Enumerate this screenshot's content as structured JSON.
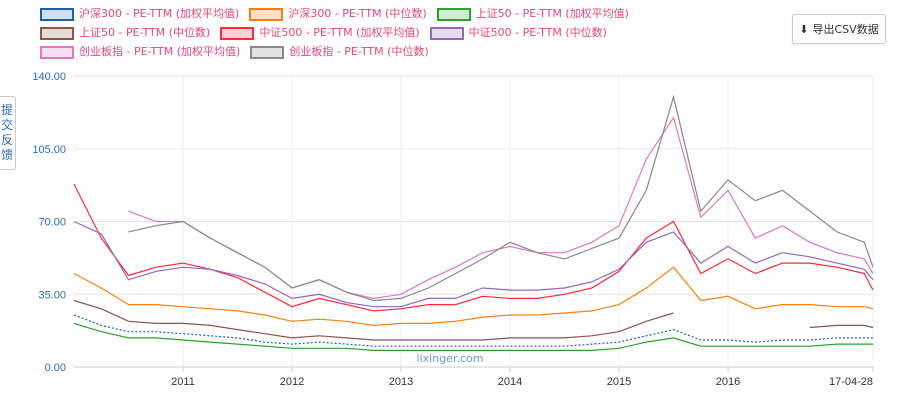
{
  "export_button": {
    "label": "导出CSV数据",
    "icon": "download-icon"
  },
  "feedback_tab": {
    "label": "提交反馈"
  },
  "watermark": "lixinger.com",
  "chart_data": {
    "type": "line",
    "title": "",
    "xlabel": "",
    "ylabel": "",
    "ylim": [
      0,
      140
    ],
    "yticks": [
      "0.00",
      "35.00",
      "70.00",
      "105.00",
      "140.00"
    ],
    "ytick_values": [
      0,
      35,
      70,
      105,
      140
    ],
    "xticks": [
      "2011",
      "2012",
      "2013",
      "2014",
      "2015",
      "2016",
      "17-04-28"
    ],
    "xtick_values": [
      2011,
      2012,
      2013,
      2014,
      2015,
      2016,
      2017.33
    ],
    "xlim": [
      2010.0,
      2017.33
    ],
    "grid": true,
    "legend_position": "top",
    "x": [
      2010,
      2010.25,
      2010.5,
      2010.75,
      2011,
      2011.25,
      2011.5,
      2011.75,
      2012,
      2012.25,
      2012.5,
      2012.75,
      2013,
      2013.25,
      2013.5,
      2013.75,
      2014,
      2014.25,
      2014.5,
      2014.75,
      2015,
      2015.25,
      2015.5,
      2015.75,
      2016,
      2016.25,
      2016.5,
      2016.75,
      2017,
      2017.25,
      2017.33
    ],
    "series": [
      {
        "name": "沪深300 - PE-TTM (加权平均值)",
        "color": "#1f5fa8",
        "fill": "#cfe0f0",
        "dash": true,
        "values": [
          25,
          20,
          17,
          17,
          16,
          15,
          14,
          12,
          11,
          12,
          11,
          10,
          10,
          10,
          10,
          10,
          10,
          10,
          10,
          11,
          12,
          15,
          18,
          13,
          13,
          12,
          13,
          13,
          14,
          14,
          14
        ]
      },
      {
        "name": "沪深300 - PE-TTM (中位数)",
        "color": "#ff7f0e",
        "fill": "#ffe0c8",
        "values": [
          45,
          38,
          30,
          30,
          29,
          28,
          27,
          25,
          22,
          23,
          22,
          20,
          21,
          21,
          22,
          24,
          25,
          25,
          26,
          27,
          30,
          38,
          48,
          32,
          34,
          28,
          30,
          30,
          29,
          29,
          28
        ]
      },
      {
        "name": "上证50 - PE-TTM (加权平均值)",
        "color": "#2ca02c",
        "fill": "#d2ecd2",
        "values": [
          21,
          17,
          14,
          14,
          13,
          12,
          11,
          10,
          9,
          9,
          9,
          8,
          8,
          8,
          8,
          8,
          8,
          8,
          8,
          8,
          9,
          12,
          14,
          10,
          10,
          10,
          10,
          10,
          11,
          11,
          11
        ]
      },
      {
        "name": "上证50 - PE-TTM (中位数)",
        "color": "#8c564b",
        "fill": "#e8dcd9",
        "values": [
          32,
          28,
          22,
          21,
          21,
          20,
          18,
          16,
          14,
          15,
          14,
          13,
          13,
          13,
          13,
          13,
          14,
          14,
          14,
          15,
          17,
          22,
          26,
          null,
          null,
          null,
          null,
          19,
          20,
          20,
          19
        ]
      },
      {
        "name": "中证500 - PE-TTM (加权平均值)",
        "color": "#ff2a3a",
        "fill": "#ffd0d4",
        "values": [
          88,
          62,
          44,
          48,
          50,
          47,
          43,
          36,
          29,
          33,
          30,
          27,
          28,
          30,
          30,
          34,
          33,
          33,
          35,
          38,
          46,
          62,
          70,
          45,
          52,
          45,
          50,
          50,
          48,
          45,
          37
        ]
      },
      {
        "name": "中证500 - PE-TTM (中位数)",
        "color": "#9467bd",
        "fill": "#e6dcf0",
        "values": [
          70,
          64,
          42,
          46,
          48,
          47,
          44,
          40,
          33,
          35,
          31,
          29,
          29,
          33,
          33,
          38,
          37,
          37,
          38,
          41,
          47,
          60,
          65,
          50,
          58,
          50,
          55,
          53,
          50,
          47,
          42
        ]
      },
      {
        "name": "创业板指 - PE-TTM (加权平均值)",
        "color": "#e377c2",
        "fill": "#f8dcf0",
        "values": [
          null,
          null,
          75,
          70,
          70,
          62,
          55,
          48,
          38,
          42,
          36,
          33,
          35,
          42,
          48,
          55,
          58,
          55,
          55,
          60,
          68,
          100,
          120,
          72,
          85,
          62,
          68,
          60,
          55,
          52,
          45
        ]
      },
      {
        "name": "创业板指 - PE-TTM (中位数)",
        "color": "#888888",
        "fill": "#e2e2e2",
        "values": [
          null,
          null,
          65,
          68,
          70,
          62,
          55,
          48,
          38,
          42,
          36,
          32,
          33,
          38,
          45,
          52,
          60,
          55,
          52,
          57,
          62,
          85,
          130,
          75,
          90,
          80,
          85,
          75,
          65,
          60,
          48
        ]
      }
    ]
  }
}
